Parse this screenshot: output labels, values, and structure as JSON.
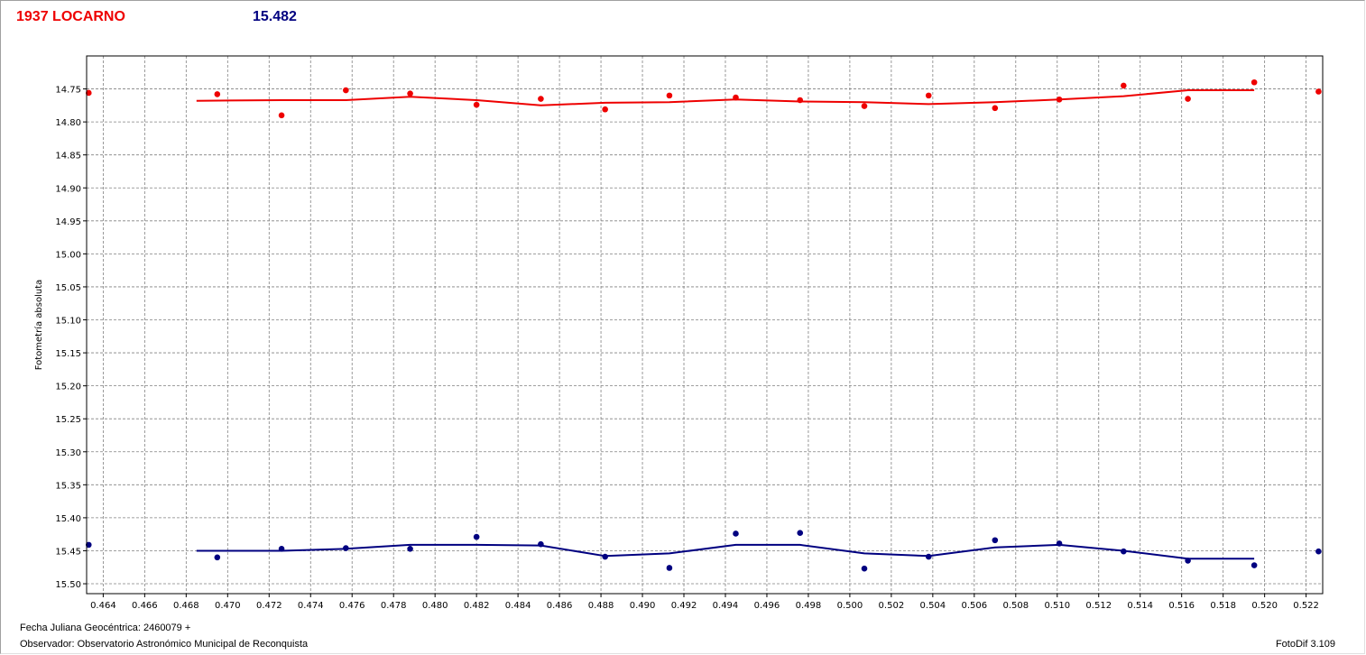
{
  "header": {
    "object_name": "1937 LOCARNO",
    "reference_value": "15.482"
  },
  "footer": {
    "julian_date": "Fecha Juliana Geocéntrica: 2460079 +",
    "observer": "Observador: Observatorio Astronómico Municipal de Reconquista",
    "software": "FotoDif 3.109"
  },
  "colors": {
    "series1": "#ee0000",
    "series2": "#000080",
    "grid": "#808080"
  },
  "chart_data": {
    "type": "scatter",
    "title": "",
    "xlabel": "",
    "ylabel": "Fotometría absoluta",
    "xlim": [
      0.4632,
      0.5228
    ],
    "ylim": [
      14.7,
      15.515
    ],
    "y_inverted": true,
    "grid": true,
    "x_ticks": [
      "0.464",
      "0.466",
      "0.468",
      "0.470",
      "0.472",
      "0.474",
      "0.476",
      "0.478",
      "0.480",
      "0.482",
      "0.484",
      "0.486",
      "0.488",
      "0.490",
      "0.492",
      "0.494",
      "0.496",
      "0.498",
      "0.500",
      "0.502",
      "0.504",
      "0.506",
      "0.508",
      "0.510",
      "0.512",
      "0.514",
      "0.516",
      "0.518",
      "0.520",
      "0.522"
    ],
    "y_ticks": [
      "14.75",
      "14.80",
      "14.85",
      "14.90",
      "14.95",
      "15.00",
      "15.05",
      "15.10",
      "15.15",
      "15.20",
      "15.25",
      "15.30",
      "15.35",
      "15.40",
      "15.45",
      "15.50"
    ],
    "series": [
      {
        "color": "#ee0000",
        "points": [
          [
            0.4633,
            14.756
          ],
          [
            0.4695,
            14.758
          ],
          [
            0.4726,
            14.79
          ],
          [
            0.4757,
            14.752
          ],
          [
            0.4788,
            14.757
          ],
          [
            0.482,
            14.774
          ],
          [
            0.4851,
            14.765
          ],
          [
            0.4882,
            14.781
          ],
          [
            0.4913,
            14.76
          ],
          [
            0.4945,
            14.763
          ],
          [
            0.4976,
            14.767
          ],
          [
            0.5007,
            14.776
          ],
          [
            0.5038,
            14.76
          ],
          [
            0.507,
            14.779
          ],
          [
            0.5101,
            14.766
          ],
          [
            0.5132,
            14.745
          ],
          [
            0.5163,
            14.765
          ],
          [
            0.5195,
            14.74
          ],
          [
            0.5226,
            14.754
          ]
        ],
        "fit": [
          [
            0.4685,
            14.768
          ],
          [
            0.4726,
            14.767
          ],
          [
            0.4757,
            14.767
          ],
          [
            0.4788,
            14.762
          ],
          [
            0.482,
            14.767
          ],
          [
            0.4851,
            14.775
          ],
          [
            0.4882,
            14.771
          ],
          [
            0.4913,
            14.77
          ],
          [
            0.4945,
            14.766
          ],
          [
            0.4976,
            14.769
          ],
          [
            0.5007,
            14.77
          ],
          [
            0.5038,
            14.773
          ],
          [
            0.507,
            14.77
          ],
          [
            0.5101,
            14.766
          ],
          [
            0.5132,
            14.761
          ],
          [
            0.5163,
            14.752
          ],
          [
            0.5195,
            14.752
          ]
        ]
      },
      {
        "color": "#000080",
        "points": [
          [
            0.4633,
            15.441
          ],
          [
            0.4695,
            15.46
          ],
          [
            0.4726,
            15.447
          ],
          [
            0.4757,
            15.446
          ],
          [
            0.4788,
            15.447
          ],
          [
            0.482,
            15.429
          ],
          [
            0.4851,
            15.44
          ],
          [
            0.4882,
            15.459
          ],
          [
            0.4913,
            15.476
          ],
          [
            0.4945,
            15.424
          ],
          [
            0.4976,
            15.423
          ],
          [
            0.5007,
            15.477
          ],
          [
            0.5038,
            15.459
          ],
          [
            0.507,
            15.434
          ],
          [
            0.5101,
            15.439
          ],
          [
            0.5132,
            15.451
          ],
          [
            0.5163,
            15.465
          ],
          [
            0.5195,
            15.472
          ],
          [
            0.5226,
            15.451
          ]
        ],
        "fit": [
          [
            0.4685,
            15.45
          ],
          [
            0.4726,
            15.45
          ],
          [
            0.4757,
            15.447
          ],
          [
            0.4788,
            15.441
          ],
          [
            0.482,
            15.441
          ],
          [
            0.4851,
            15.442
          ],
          [
            0.4882,
            15.458
          ],
          [
            0.4913,
            15.454
          ],
          [
            0.4945,
            15.441
          ],
          [
            0.4976,
            15.441
          ],
          [
            0.5007,
            15.454
          ],
          [
            0.5038,
            15.458
          ],
          [
            0.507,
            15.445
          ],
          [
            0.5101,
            15.441
          ],
          [
            0.5132,
            15.45
          ],
          [
            0.5163,
            15.462
          ],
          [
            0.5195,
            15.462
          ]
        ]
      }
    ]
  }
}
